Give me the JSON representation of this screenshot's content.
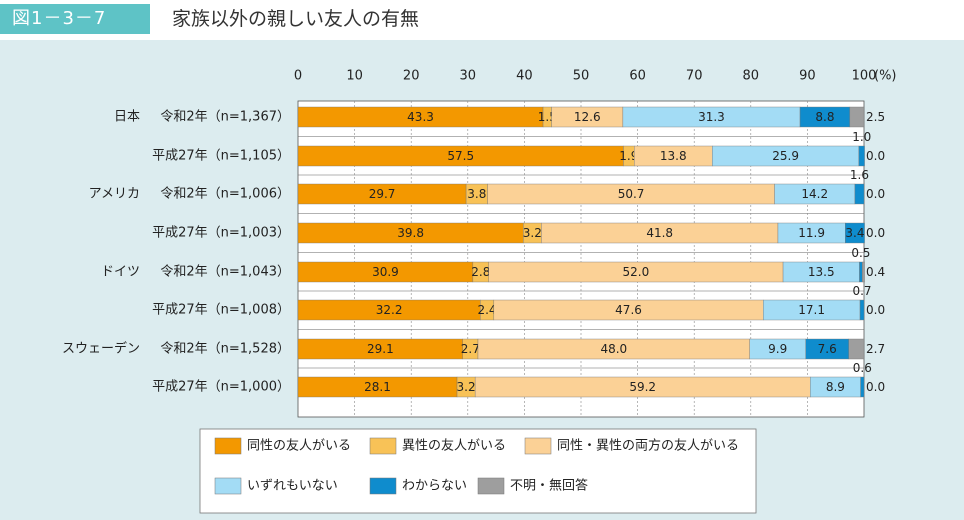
{
  "header": {
    "figure_label": "図1－3－7",
    "title": "家族以外の親しい友人の有無"
  },
  "colors": {
    "panel_bg": "#dcecef",
    "accent": "#5ec3c6",
    "series": [
      "#f39800",
      "#f8c257",
      "#fbd196",
      "#a3dcf5",
      "#0f8ccd",
      "#9e9e9e"
    ]
  },
  "chart_data": {
    "type": "bar",
    "orientation": "horizontal-stacked-100",
    "title": "家族以外の親しい友人の有無",
    "x_ticks": [
      "0",
      "10",
      "20",
      "30",
      "40",
      "50",
      "60",
      "70",
      "80",
      "90",
      "100"
    ],
    "x_unit": "(%)",
    "xlim": [
      0,
      100
    ],
    "groups": [
      {
        "country": "日本",
        "rows": [
          0,
          1
        ]
      },
      {
        "country": "アメリカ",
        "rows": [
          2,
          3
        ]
      },
      {
        "country": "ドイツ",
        "rows": [
          4,
          5
        ]
      },
      {
        "country": "スウェーデン",
        "rows": [
          6,
          7
        ]
      }
    ],
    "rows": [
      {
        "label": "令和2年（n=1,367）",
        "values": [
          43.3,
          1.5,
          12.6,
          31.3,
          8.8,
          2.5
        ],
        "labels": [
          "43.3",
          "1.5",
          "12.6",
          "31.3",
          "8.8",
          "2.5"
        ]
      },
      {
        "label": "平成27年（n=1,105）",
        "values": [
          57.5,
          1.9,
          13.8,
          25.9,
          1.0,
          0.0
        ],
        "labels": [
          "57.5",
          "1.9",
          "13.8",
          "25.9",
          "1.0",
          "0.0"
        ]
      },
      {
        "label": "令和2年（n=1,006）",
        "values": [
          29.7,
          3.8,
          50.7,
          14.2,
          1.6,
          0.0
        ],
        "labels": [
          "29.7",
          "3.8",
          "50.7",
          "14.2",
          "1.6",
          "0.0"
        ]
      },
      {
        "label": "平成27年（n=1,003）",
        "values": [
          39.8,
          3.2,
          41.8,
          11.9,
          3.4,
          0.0
        ],
        "labels": [
          "39.8",
          "3.2",
          "41.8",
          "11.9",
          "3.4",
          "0.0"
        ]
      },
      {
        "label": "令和2年（n=1,043）",
        "values": [
          30.9,
          2.8,
          52.0,
          13.5,
          0.5,
          0.4
        ],
        "labels": [
          "30.9",
          "2.8",
          "52.0",
          "13.5",
          "0.5",
          "0.4"
        ]
      },
      {
        "label": "平成27年（n=1,008）",
        "values": [
          32.2,
          2.4,
          47.6,
          17.1,
          0.7,
          0.0
        ],
        "labels": [
          "32.2",
          "2.4",
          "47.6",
          "17.1",
          "0.7",
          "0.0"
        ]
      },
      {
        "label": "令和2年（n=1,528）",
        "values": [
          29.1,
          2.7,
          48.0,
          9.9,
          7.6,
          2.7
        ],
        "labels": [
          "29.1",
          "2.7",
          "48.0",
          "9.9",
          "7.6",
          "2.7"
        ]
      },
      {
        "label": "平成27年（n=1,000）",
        "values": [
          28.1,
          3.2,
          59.2,
          8.9,
          0.6,
          0.0
        ],
        "labels": [
          "28.1",
          "3.2",
          "59.2",
          "8.9",
          "0.6",
          "0.0"
        ]
      }
    ],
    "series": [
      {
        "name": "同性の友人がいる"
      },
      {
        "name": "異性の友人がいる"
      },
      {
        "name": "同性・異性の両方の友人がいる"
      },
      {
        "name": "いずれもいない"
      },
      {
        "name": "わからない"
      },
      {
        "name": "不明・無回答"
      }
    ]
  }
}
